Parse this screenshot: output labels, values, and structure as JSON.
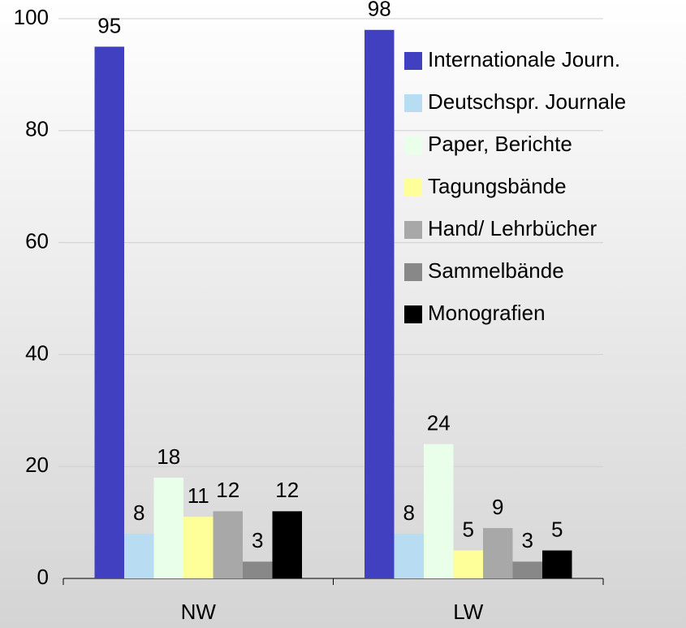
{
  "chart_data": {
    "type": "bar",
    "categories": [
      "NW",
      "LW"
    ],
    "series": [
      {
        "name": "Internationale Journ.",
        "color": "#4040c0",
        "values": [
          95,
          98
        ]
      },
      {
        "name": "Deutschspr. Journale",
        "color": "#b8dcf2",
        "values": [
          8,
          8
        ]
      },
      {
        "name": "Paper, Berichte",
        "color": "#eaffea",
        "values": [
          18,
          24
        ]
      },
      {
        "name": "Tagungsbände",
        "color": "#ffff99",
        "values": [
          11,
          5
        ]
      },
      {
        "name": "Hand/ Lehrbücher",
        "color": "#a8a8a8",
        "values": [
          12,
          9
        ]
      },
      {
        "name": "Sammelbände",
        "color": "#888888",
        "values": [
          3,
          3
        ]
      },
      {
        "name": "Monografien",
        "color": "#000000",
        "values": [
          12,
          5
        ]
      }
    ],
    "ylim": [
      0,
      100
    ],
    "yticks": [
      0,
      20,
      40,
      60,
      80,
      100
    ],
    "grid": true,
    "legend": "right"
  }
}
